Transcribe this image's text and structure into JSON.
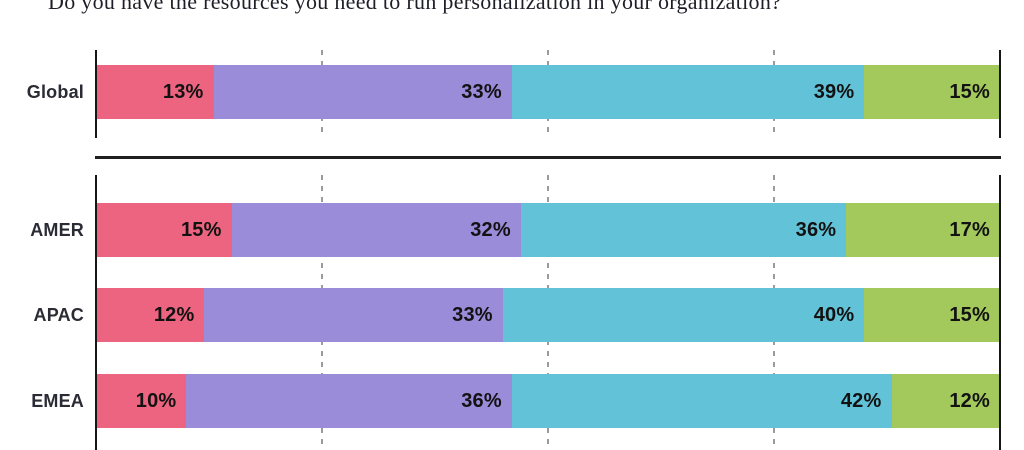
{
  "title": "Do you have the resources you need to run personalization in your organization?",
  "colors": {
    "segment_pink": "#ec6480",
    "segment_purple": "#9a8cd9",
    "segment_teal": "#62c2d7",
    "segment_green": "#a3c95c",
    "axis_line": "#161616",
    "gridline": "#9b9b9b",
    "separator": "#1f1f1f",
    "row_label_text": "#2b2b35",
    "value_label_text": "#121212",
    "title_text": "#1e1e28",
    "background": "#ffffff"
  },
  "chart_data": {
    "type": "bar",
    "stacked": true,
    "orientation": "horizontal",
    "title": "Do you have the resources you need to run personalization in your organization?",
    "unit": "%",
    "xlim": [
      0,
      100
    ],
    "gridlines_pct": [
      25,
      50,
      75
    ],
    "grid": "dashed vertical at quartiles, solid axis lines at 0% and 100%",
    "legend_position": "none",
    "segment_colors": [
      "#ec6480",
      "#9a8cd9",
      "#62c2d7",
      "#a3c95c"
    ],
    "sections": [
      {
        "name": "global",
        "categories": [
          "Global"
        ],
        "rows": [
          [
            13,
            33,
            39,
            15
          ]
        ]
      },
      {
        "name": "regions",
        "categories": [
          "AMER",
          "APAC",
          "EMEA"
        ],
        "rows": [
          [
            15,
            32,
            36,
            17
          ],
          [
            12,
            33,
            40,
            15
          ],
          [
            10,
            36,
            42,
            12
          ]
        ]
      }
    ]
  }
}
